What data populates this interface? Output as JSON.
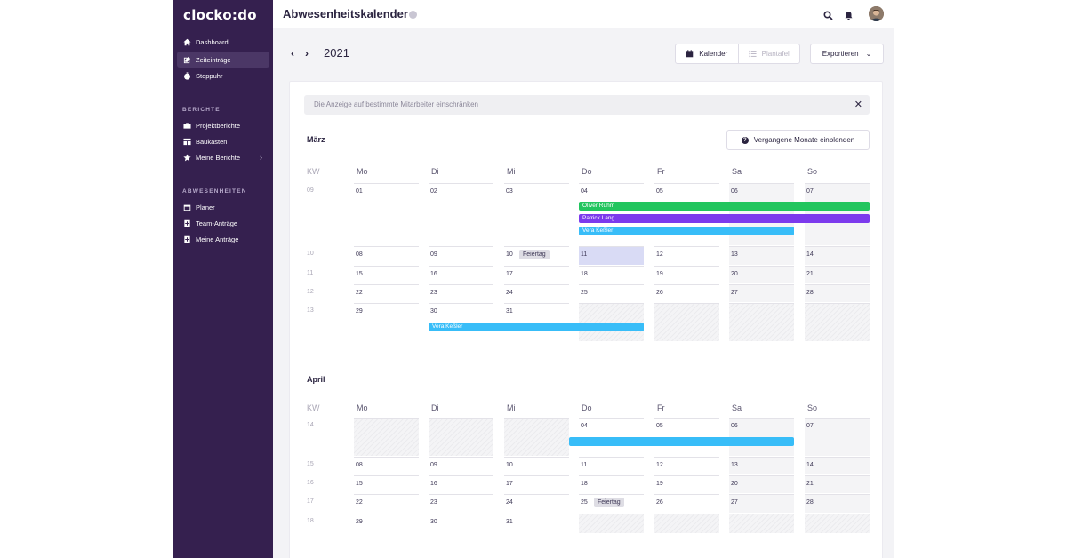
{
  "app": {
    "logo": "clocko:do",
    "page_title": "Abwesenheitskalender",
    "info_icon": "i"
  },
  "sidebar": {
    "main_items": [
      {
        "label": "Dashboard",
        "icon": "home-icon"
      },
      {
        "label": "Zeiteinträge",
        "icon": "edit-icon",
        "active": true
      },
      {
        "label": "Stoppuhr",
        "icon": "stopwatch-icon"
      }
    ],
    "reports_section": "BERICHTE",
    "report_items": [
      {
        "label": "Projektberichte",
        "icon": "briefcase-icon"
      },
      {
        "label": "Baukasten",
        "icon": "layout-icon"
      },
      {
        "label": "Meine Berichte",
        "icon": "star-icon",
        "chevron": "›"
      }
    ],
    "absence_section": "ABWESENHEITEN",
    "absence_items": [
      {
        "label": "Planer",
        "icon": "calendar-icon"
      },
      {
        "label": "Team-Anträge",
        "icon": "team-request-icon"
      },
      {
        "label": "Meine Anträge",
        "icon": "my-request-icon"
      }
    ]
  },
  "toolbar": {
    "prev": "‹",
    "next": "›",
    "year": "2021",
    "view_calendar": "Kalender",
    "view_board": "Plantafel",
    "export": "Exportieren",
    "export_chevron": "⌄"
  },
  "filter": {
    "text": "Die Anzeige auf bestimmte Mitarbeiter einschränken",
    "close": "✕"
  },
  "past_months_button": "Vergangene Monate einblenden",
  "weekday_headers": [
    "KW",
    "Mo",
    "Di",
    "Mi",
    "Do",
    "Fr",
    "Sa",
    "So"
  ],
  "months": [
    {
      "title": "März",
      "weeks": [
        {
          "kw": "09",
          "days": [
            "01",
            "02",
            "03",
            "04",
            "05",
            "06",
            "07"
          ]
        },
        {
          "kw": "10",
          "days": [
            "08",
            "09",
            "10",
            "11",
            "12",
            "13",
            "14"
          ],
          "holiday": {
            "day_index": 2,
            "label": "Feiertag"
          },
          "today_index": 3
        },
        {
          "kw": "11",
          "days": [
            "15",
            "16",
            "17",
            "18",
            "19",
            "20",
            "21"
          ]
        },
        {
          "kw": "12",
          "days": [
            "22",
            "23",
            "24",
            "25",
            "26",
            "27",
            "28"
          ]
        },
        {
          "kw": "13",
          "days": [
            "29",
            "30",
            "31",
            "",
            "",
            "",
            ""
          ]
        }
      ],
      "absences": [
        {
          "name": "Oliver Ruhm",
          "color": "#22c55e"
        },
        {
          "name": "Patrick Lang",
          "color": "#7c3aed"
        },
        {
          "name": "Vera Keßler",
          "color": "#38bdf8"
        },
        {
          "name": "Vera Keßler",
          "color": "#38bdf8"
        }
      ]
    },
    {
      "title": "April",
      "weeks": [
        {
          "kw": "14",
          "days": [
            "",
            "",
            "",
            "04",
            "05",
            "06",
            "07"
          ]
        },
        {
          "kw": "15",
          "days": [
            "08",
            "09",
            "10",
            "11",
            "12",
            "13",
            "14"
          ]
        },
        {
          "kw": "16",
          "days": [
            "15",
            "16",
            "17",
            "18",
            "19",
            "20",
            "21"
          ]
        },
        {
          "kw": "17",
          "days": [
            "22",
            "23",
            "24",
            "25",
            "26",
            "27",
            "28"
          ],
          "holiday": {
            "day_index": 3,
            "label": "Feiertag"
          }
        },
        {
          "kw": "18",
          "days": [
            "29",
            "30",
            "31",
            "",
            "",
            "",
            ""
          ]
        }
      ],
      "absences": [
        {
          "name": "",
          "color": "#38bdf8"
        }
      ]
    }
  ],
  "colors": {
    "sidebar_bg": "#35204f",
    "accent_green": "#22c55e",
    "accent_purple": "#7c3aed",
    "accent_blue": "#38bdf8",
    "today": "#d9dbf5"
  }
}
